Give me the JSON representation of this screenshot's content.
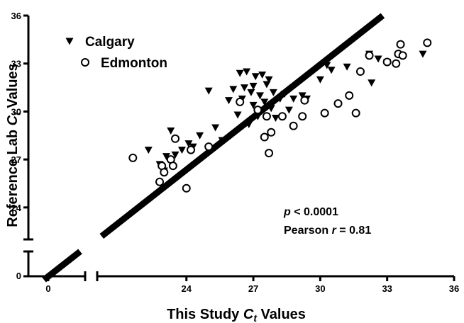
{
  "chart_data": {
    "type": "scatter",
    "xlabel": {
      "prefix": "This Study",
      "var": "C",
      "sub": "t",
      "suffix": "Values"
    },
    "ylabel": {
      "prefix": "Reference Lab",
      "var": "C",
      "sub": "t",
      "suffix": "Values"
    },
    "xlim": [
      20,
      36
    ],
    "ylim": [
      22,
      36
    ],
    "xticks": [
      24,
      27,
      30,
      33,
      36
    ],
    "yticks": [
      24,
      27,
      30,
      33,
      36
    ],
    "xbreak_ticks": [
      0
    ],
    "ybreak_ticks": [
      0
    ],
    "legend": "top-left",
    "series": [
      {
        "name": "Calgary",
        "marker": "triangle-down",
        "color": "#000000",
        "x": [
          22.3,
          22.8,
          23.0,
          23.1,
          23.3,
          23.5,
          23.8,
          24.1,
          24.3,
          24.6,
          25.0,
          25.3,
          25.6,
          25.9,
          26.1,
          26.3,
          26.4,
          26.5,
          26.6,
          26.7,
          26.8,
          26.9,
          27.0,
          27.0,
          27.1,
          27.2,
          27.3,
          27.4,
          27.5,
          27.6,
          27.7,
          27.8,
          27.9,
          28.0,
          28.2,
          28.4,
          28.6,
          28.8,
          29.2,
          29.4,
          30.0,
          30.3,
          30.5,
          31.2,
          32.2,
          32.3,
          32.6,
          33.0,
          34.6
        ],
        "values": [
          27.6,
          26.7,
          26.3,
          27.2,
          28.8,
          27.3,
          27.6,
          28.0,
          27.8,
          28.5,
          31.3,
          29.0,
          28.2,
          30.7,
          31.4,
          29.8,
          32.4,
          30.8,
          31.5,
          32.5,
          29.2,
          31.2,
          31.6,
          30.4,
          32.2,
          29.7,
          31.0,
          32.3,
          30.6,
          31.7,
          32.0,
          30.2,
          31.2,
          29.6,
          30.8,
          31.1,
          30.1,
          30.8,
          31.0,
          30.8,
          32.0,
          32.9,
          32.6,
          32.8,
          33.6,
          31.8,
          33.3,
          33.1,
          33.6
        ]
      },
      {
        "name": "Edmonton",
        "marker": "circle-open",
        "color": "#000000",
        "x": [
          21.6,
          22.8,
          22.9,
          23.0,
          23.3,
          23.4,
          23.5,
          24.0,
          24.2,
          25.0,
          26.4,
          27.2,
          27.5,
          27.6,
          27.7,
          27.8,
          28.3,
          28.8,
          29.2,
          29.3,
          30.2,
          30.8,
          31.3,
          31.6,
          31.8,
          32.2,
          33.0,
          33.4,
          33.5,
          33.6,
          33.7,
          34.8
        ],
        "values": [
          27.1,
          25.6,
          26.6,
          26.2,
          27.0,
          26.6,
          28.3,
          25.2,
          27.6,
          27.8,
          30.6,
          30.1,
          28.4,
          29.7,
          27.4,
          28.7,
          29.7,
          29.1,
          29.7,
          30.7,
          29.9,
          30.5,
          31.0,
          29.9,
          32.5,
          33.5,
          33.1,
          33.0,
          33.6,
          34.2,
          33.5,
          34.3
        ]
      }
    ],
    "fit_line": {
      "x": [
        20.2,
        32.8
      ],
      "y": [
        22.2,
        36
      ]
    },
    "annotations": [
      {
        "var": "p",
        "text": "< 0.0001"
      },
      {
        "prefix": "Pearson",
        "var": "r",
        "text": "= 0.81"
      }
    ]
  }
}
